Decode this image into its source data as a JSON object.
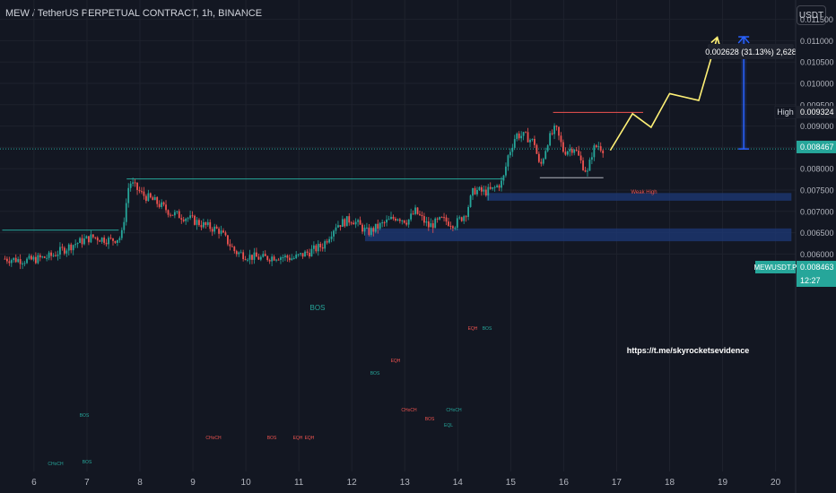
{
  "header": {
    "title": "MEW / TetherUS PERPETUAL CONTRACT, 1h, BINANCE",
    "currency_button": "USDT"
  },
  "colors": {
    "background": "#131722",
    "up": "#26a69a",
    "down": "#ef5350",
    "projection": "#fff176",
    "measure": "#2962ff",
    "zone": "#1e3a78",
    "bos_line": "#26a69a",
    "weak_high_line": "#ef5350",
    "gray_line": "#b2b5be"
  },
  "chart_data": {
    "type": "candlestick",
    "symbol": "MEWUSDT.P",
    "x_tick_labels": [
      "6",
      "7",
      "8",
      "9",
      "10",
      "11",
      "12",
      "13",
      "14",
      "15",
      "16",
      "17",
      "18",
      "19",
      "20"
    ],
    "y_tick_labels": [
      "0.011500",
      "0.011000",
      "0.010500",
      "0.010000",
      "0.009500",
      "0.009000",
      "0.008500",
      "0.008000",
      "0.007500",
      "0.007000",
      "0.006500",
      "0.006000"
    ],
    "ylim": [
      0.00575,
      0.01175
    ],
    "grid": true,
    "price_labels": [
      {
        "name": "High",
        "value": "0.009324"
      },
      {
        "name": "",
        "value": "0.008467"
      },
      {
        "name": "MEWUSDT.P",
        "value": "0.008463"
      },
      {
        "name": "",
        "value": "12:27"
      }
    ],
    "measure_label": "0.002628 (31.13%) 2,628",
    "annotations": {
      "bos_main": "BOS",
      "weak_high": "Weak High",
      "url": "https://t.me/skyrocketsevidence",
      "small_labels": [
        "CHoCH",
        "BOS",
        "CHoCH",
        "BOS",
        "EQH",
        "EQH",
        "CHoCH",
        "BOS",
        "EQH",
        "CHoCH",
        "BOS",
        "EQL",
        "EQH",
        "BOS",
        "BOS"
      ]
    },
    "projection_path": [
      {
        "day": 16.88,
        "price": 0.00843
      },
      {
        "day": 17.3,
        "price": 0.00929
      },
      {
        "day": 17.65,
        "price": 0.00897
      },
      {
        "day": 18.0,
        "price": 0.00976
      },
      {
        "day": 18.55,
        "price": 0.0096
      },
      {
        "day": 18.9,
        "price": 0.01108
      }
    ],
    "measure": {
      "day": 19.4,
      "from": 0.008463,
      "to": 0.011091
    },
    "bos_level": {
      "from_day": 7.75,
      "to_day": 14.85,
      "price": 0.00776
    },
    "weak_high_level": {
      "from_day": 15.8,
      "to_day": 17.5,
      "price": 0.00932
    },
    "gray_level": {
      "from_day": 15.55,
      "to_day": 16.75,
      "price": 0.00779
    },
    "left_green_level": {
      "from_day": 5.4,
      "to_day": 7.6,
      "price": 0.00656
    },
    "zones": [
      {
        "from_day": 14.55,
        "to_day": 20.3,
        "low": 0.00725,
        "high": 0.00743
      },
      {
        "from_day": 12.25,
        "to_day": 20.3,
        "low": 0.0063,
        "high": 0.0066
      }
    ],
    "candles_anchor_path": [
      [
        5.45,
        0.00589
      ],
      [
        5.9,
        0.00585
      ],
      [
        6.3,
        0.00594
      ],
      [
        6.75,
        0.00623
      ],
      [
        7.1,
        0.0064
      ],
      [
        7.45,
        0.00632
      ],
      [
        7.65,
        0.0064
      ],
      [
        7.8,
        0.0077
      ],
      [
        8.05,
        0.00739
      ],
      [
        8.3,
        0.00722
      ],
      [
        8.6,
        0.00695
      ],
      [
        8.9,
        0.00685
      ],
      [
        9.2,
        0.00668
      ],
      [
        9.5,
        0.00655
      ],
      [
        9.8,
        0.00605
      ],
      [
        10.05,
        0.00595
      ],
      [
        10.3,
        0.0059
      ],
      [
        10.6,
        0.00595
      ],
      [
        10.9,
        0.0059
      ],
      [
        11.2,
        0.00605
      ],
      [
        11.45,
        0.0062
      ],
      [
        11.7,
        0.00668
      ],
      [
        12.0,
        0.00682
      ],
      [
        12.3,
        0.0065
      ],
      [
        12.55,
        0.00668
      ],
      [
        12.85,
        0.00688
      ],
      [
        13.05,
        0.00677
      ],
      [
        13.2,
        0.007
      ],
      [
        13.45,
        0.00665
      ],
      [
        13.7,
        0.0068
      ],
      [
        13.95,
        0.0067
      ],
      [
        14.15,
        0.00695
      ],
      [
        14.3,
        0.0075
      ],
      [
        14.5,
        0.00745
      ],
      [
        14.65,
        0.0075
      ],
      [
        14.85,
        0.0077
      ],
      [
        14.95,
        0.0083
      ],
      [
        15.1,
        0.0088
      ],
      [
        15.3,
        0.00875
      ],
      [
        15.45,
        0.0086
      ],
      [
        15.55,
        0.008
      ],
      [
        15.7,
        0.00865
      ],
      [
        15.85,
        0.00895
      ],
      [
        16.0,
        0.0084
      ],
      [
        16.2,
        0.0085
      ],
      [
        16.35,
        0.0081
      ],
      [
        16.45,
        0.0079
      ],
      [
        16.55,
        0.00845
      ],
      [
        16.65,
        0.00855
      ],
      [
        16.75,
        0.00846
      ]
    ]
  }
}
